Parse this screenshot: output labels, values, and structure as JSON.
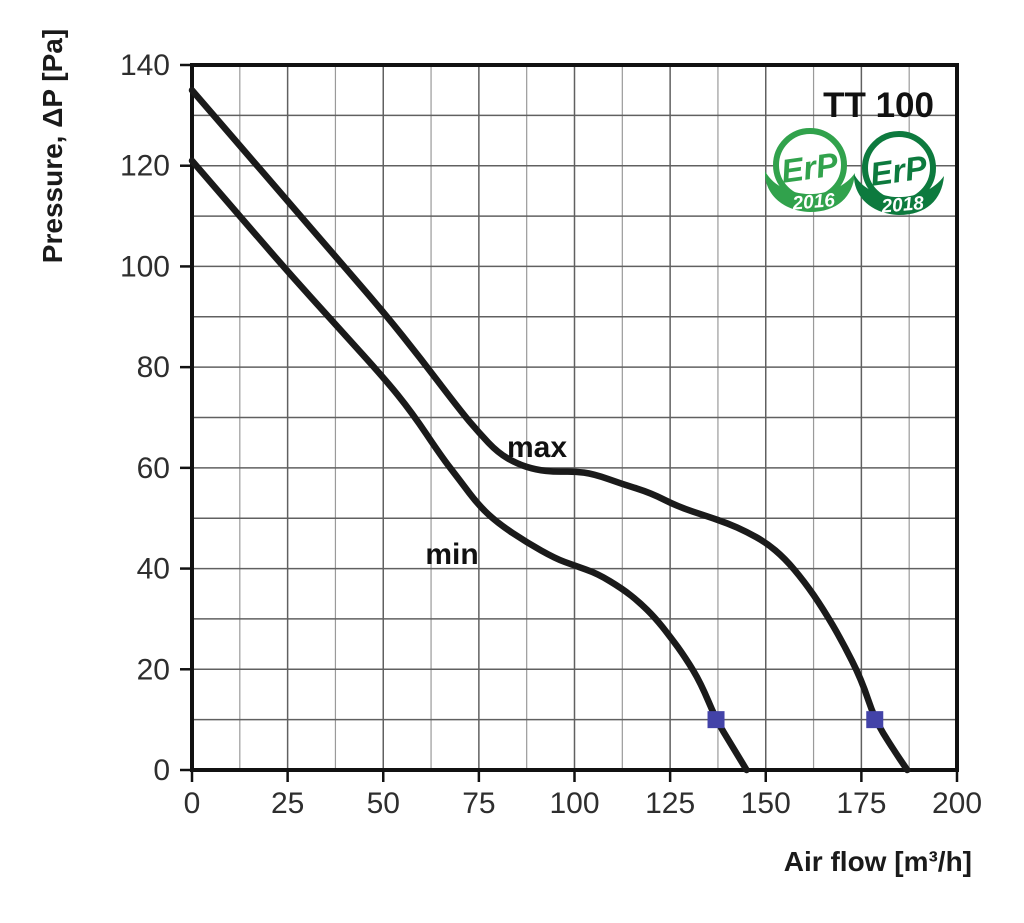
{
  "title": "TT 100",
  "chart_data": {
    "type": "line",
    "title": "TT 100",
    "xlabel": "Air flow [m³/h]",
    "ylabel": "Pressure, ΔP [Pa]",
    "xlim": [
      0,
      200
    ],
    "ylim": [
      0,
      140
    ],
    "x_ticks": [
      0,
      25,
      50,
      75,
      100,
      125,
      150,
      175,
      200
    ],
    "y_ticks": [
      0,
      20,
      40,
      60,
      80,
      100,
      120,
      140
    ],
    "x_minor_step": 12.5,
    "x_major_step": 25,
    "y_grid_step": 10,
    "grid": true,
    "legend_position": "inline-labels",
    "curve_color": "#1a1a1a",
    "marker_color": "#4343a8",
    "series": [
      {
        "name": "max",
        "points": [
          [
            0,
            135
          ],
          [
            12.5,
            124
          ],
          [
            25,
            113
          ],
          [
            37.5,
            102
          ],
          [
            50,
            91
          ],
          [
            60,
            81.5
          ],
          [
            70,
            71.5
          ],
          [
            75,
            67
          ],
          [
            80,
            63
          ],
          [
            85,
            60.8
          ],
          [
            90,
            59.6
          ],
          [
            95,
            59.2
          ],
          [
            100,
            59.3
          ],
          [
            105,
            58.8
          ],
          [
            112.5,
            56.8
          ],
          [
            120,
            55
          ],
          [
            127,
            52.3
          ],
          [
            135,
            50.3
          ],
          [
            140,
            49
          ],
          [
            145,
            47.3
          ],
          [
            150,
            45.2
          ],
          [
            155,
            42
          ],
          [
            160,
            37.5
          ],
          [
            165,
            32
          ],
          [
            170,
            25.5
          ],
          [
            175,
            18
          ],
          [
            178.5,
            10
          ],
          [
            183,
            4.5
          ],
          [
            187,
            0
          ]
        ]
      },
      {
        "name": "min",
        "points": [
          [
            0,
            121
          ],
          [
            12.5,
            110
          ],
          [
            25,
            99
          ],
          [
            37.5,
            88.5
          ],
          [
            50,
            78
          ],
          [
            57.5,
            71
          ],
          [
            65,
            62.5
          ],
          [
            70,
            57.5
          ],
          [
            75,
            52.5
          ],
          [
            80,
            49
          ],
          [
            87.5,
            45.2
          ],
          [
            95,
            42
          ],
          [
            100,
            40.6
          ],
          [
            106,
            39
          ],
          [
            112.5,
            36
          ],
          [
            117,
            33.3
          ],
          [
            121,
            30.3
          ],
          [
            125,
            26.5
          ],
          [
            129,
            22.3
          ],
          [
            133,
            17.3
          ],
          [
            137,
            10
          ],
          [
            141,
            5
          ],
          [
            145,
            0
          ]
        ]
      }
    ],
    "markers": [
      {
        "series": "min",
        "x": 137,
        "y": 10
      },
      {
        "series": "max",
        "x": 178.5,
        "y": 10
      }
    ]
  },
  "badges": [
    {
      "label": "ErP",
      "year": "2016",
      "color": "#31a24c"
    },
    {
      "label": "ErP",
      "year": "2018",
      "color": "#0d7a3e"
    }
  ]
}
